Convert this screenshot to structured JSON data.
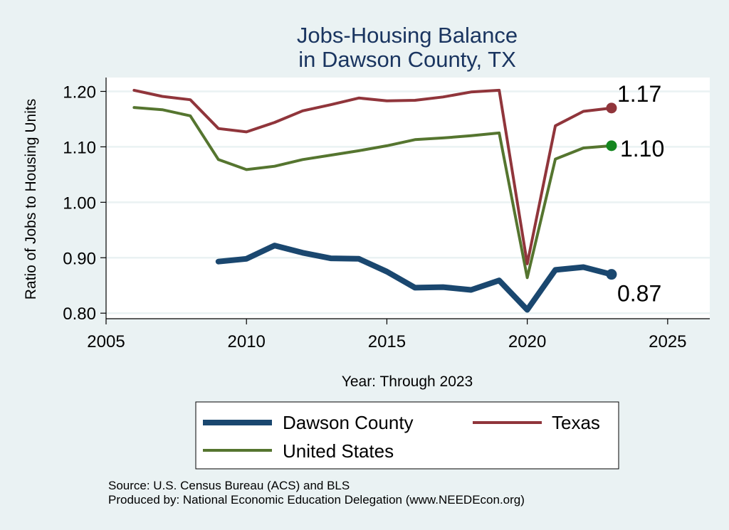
{
  "chart_data": {
    "type": "line",
    "title": [
      "Jobs-Housing Balance",
      "in Dawson County, TX"
    ],
    "xlabel": "Year: Through 2023",
    "ylabel": "Ratio of Jobs to Housing Units",
    "xlim": [
      2005,
      2026.5
    ],
    "ylim": [
      0.79,
      1.225
    ],
    "xticks": [
      2005,
      2010,
      2015,
      2020,
      2025
    ],
    "yticks": [
      0.8,
      0.9,
      1.0,
      1.1,
      1.2
    ],
    "ytick_labels": [
      "0.80",
      "0.90",
      "1.00",
      "1.10",
      "1.20"
    ],
    "grid": "horizontal",
    "legend_position": "bottom",
    "series": [
      {
        "name": "Dawson County",
        "color": "#1a476f",
        "x": [
          2009,
          2010,
          2011,
          2012,
          2013,
          2014,
          2015,
          2016,
          2017,
          2018,
          2019,
          2020,
          2021,
          2022,
          2023
        ],
        "y": [
          0.893,
          0.898,
          0.922,
          0.909,
          0.899,
          0.898,
          0.875,
          0.846,
          0.847,
          0.842,
          0.859,
          0.806,
          0.878,
          0.883,
          0.87
        ],
        "end_label": "0.87"
      },
      {
        "name": "Texas",
        "color": "#90353b",
        "x": [
          2006,
          2007,
          2008,
          2009,
          2010,
          2011,
          2012,
          2013,
          2014,
          2015,
          2016,
          2017,
          2018,
          2019,
          2020,
          2021,
          2022,
          2023
        ],
        "y": [
          1.202,
          1.191,
          1.185,
          1.133,
          1.127,
          1.144,
          1.165,
          1.176,
          1.188,
          1.183,
          1.184,
          1.19,
          1.199,
          1.202,
          0.889,
          1.138,
          1.164,
          1.17
        ],
        "end_label": "1.17"
      },
      {
        "name": "United States",
        "color": "#55752f",
        "x": [
          2006,
          2007,
          2008,
          2009,
          2010,
          2011,
          2012,
          2013,
          2014,
          2015,
          2016,
          2017,
          2018,
          2019,
          2020,
          2021,
          2022,
          2023
        ],
        "y": [
          1.171,
          1.167,
          1.156,
          1.077,
          1.059,
          1.065,
          1.077,
          1.085,
          1.093,
          1.102,
          1.113,
          1.116,
          1.12,
          1.125,
          0.864,
          1.078,
          1.098,
          1.102
        ],
        "end_label": "1.10",
        "end_marker_color": "#14861f"
      }
    ],
    "notes": [
      "Source: U.S. Census Bureau (ACS) and BLS",
      "Produced by: National Economic Education Delegation (www.NEEDEcon.org)"
    ]
  },
  "colors": {
    "background": "#eaf2f3",
    "plot_background": "#ffffff",
    "title": "#1a3560"
  }
}
